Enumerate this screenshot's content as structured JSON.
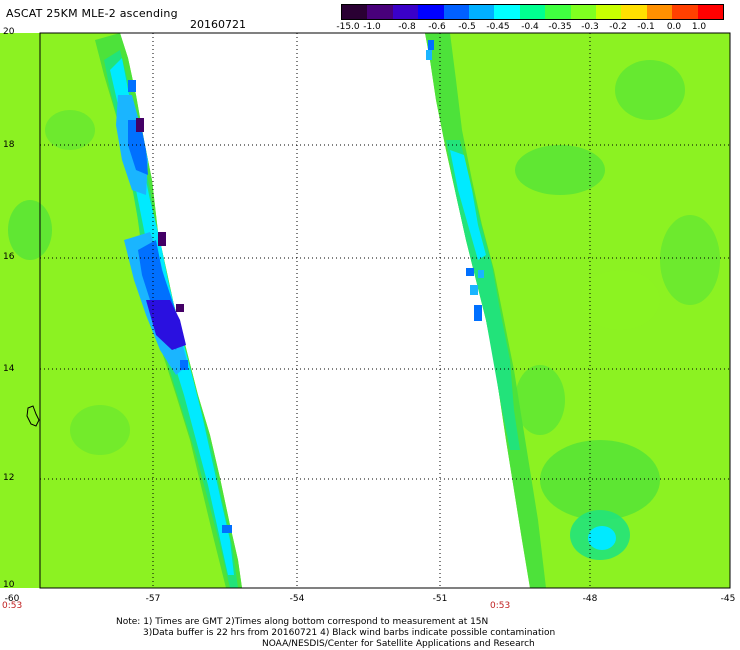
{
  "header": {
    "title": "ASCAT 25KM MLE-2 ascending",
    "date": "20160721"
  },
  "colorbar": {
    "labels": [
      "-15.0",
      "-1.0",
      "-0.8",
      "-0.6",
      "-0.5",
      "-0.45",
      "-0.4",
      "-0.35",
      "-0.3",
      "-0.2",
      "-0.1",
      "0.0",
      "1.0"
    ],
    "colors": [
      "#2a0033",
      "#48007a",
      "#3a00c8",
      "#0000ff",
      "#0060ff",
      "#00b0ff",
      "#00ffff",
      "#00ff90",
      "#40ff40",
      "#80ff20",
      "#c8ff00",
      "#ffe000",
      "#ff9000",
      "#ff4000",
      "#ff0000"
    ]
  },
  "map": {
    "lat_range": [
      10,
      20
    ],
    "lon_range": [
      -60,
      -45
    ],
    "lat_labels": [
      "20",
      "18",
      "16",
      "14",
      "12",
      "10"
    ],
    "lon_labels": [
      "-60",
      "-57",
      "-54",
      "-51",
      "-48",
      "-45"
    ],
    "pass_times": [
      "0:53",
      "0:53"
    ],
    "colors": {
      "base": "#8cf222",
      "green": "#4de23a",
      "teal": "#22e37a",
      "cyan": "#00eaff",
      "lightblue": "#1ab5ff",
      "blue": "#0070ff",
      "deepblue": "#2a10e0",
      "indigo": "#3a00b0",
      "purple": "#440066"
    }
  },
  "notes": {
    "line1": "Note: 1) Times are GMT 2)Times along bottom correspond to measurement at 15N",
    "line2": "3)Data buffer is 22 hrs from 20160721 4) Black wind barbs indicate possible contamination",
    "line3": "NOAA/NESDIS/Center for Satellite Applications and Research"
  }
}
